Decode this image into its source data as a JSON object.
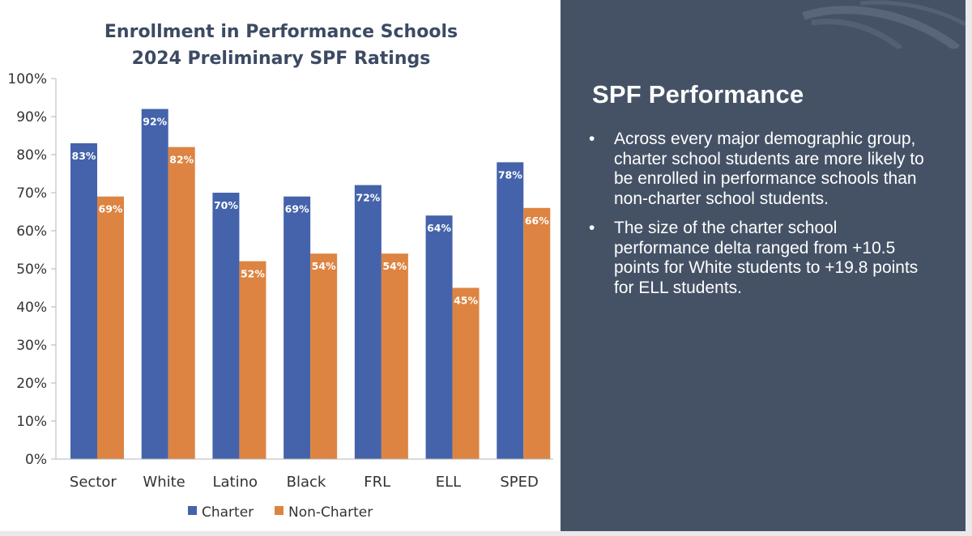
{
  "chart_data": {
    "type": "bar",
    "title": [
      "Enrollment in Performance Schools",
      "2024 Preliminary SPF Ratings"
    ],
    "categories": [
      "Sector",
      "White",
      "Latino",
      "Black",
      "FRL",
      "ELL",
      "SPED"
    ],
    "series": [
      {
        "name": "Charter",
        "color": "#4463ab",
        "values": [
          83,
          92,
          70,
          69,
          72,
          64,
          78
        ],
        "labels": [
          "83%",
          "92%",
          "70%",
          "69%",
          "72%",
          "64%",
          "78%"
        ]
      },
      {
        "name": "Non-Charter",
        "color": "#dd8442",
        "values": [
          69,
          82,
          52,
          54,
          54,
          45,
          66
        ],
        "labels": [
          "69%",
          "82%",
          "52%",
          "54%",
          "54%",
          "45%",
          "66%"
        ]
      }
    ],
    "ylim": [
      0,
      100
    ],
    "yticks": [
      0,
      10,
      20,
      30,
      40,
      50,
      60,
      70,
      80,
      90,
      100
    ],
    "ytick_labels": [
      "0%",
      "10%",
      "20%",
      "30%",
      "40%",
      "50%",
      "60%",
      "70%",
      "80%",
      "90%",
      "100%"
    ],
    "xlabel": "",
    "ylabel": "",
    "legend": "bottom-center",
    "grid": false
  },
  "panel": {
    "title": "SPF Performance",
    "bullet_char": "•",
    "bullets": [
      "Across every major demographic group, charter school students are more likely to be enrolled in performance schools than non-charter school students.",
      "The size of the charter school performance delta ranged from +10.5 points for White students to +19.8 points for ELL students."
    ]
  }
}
